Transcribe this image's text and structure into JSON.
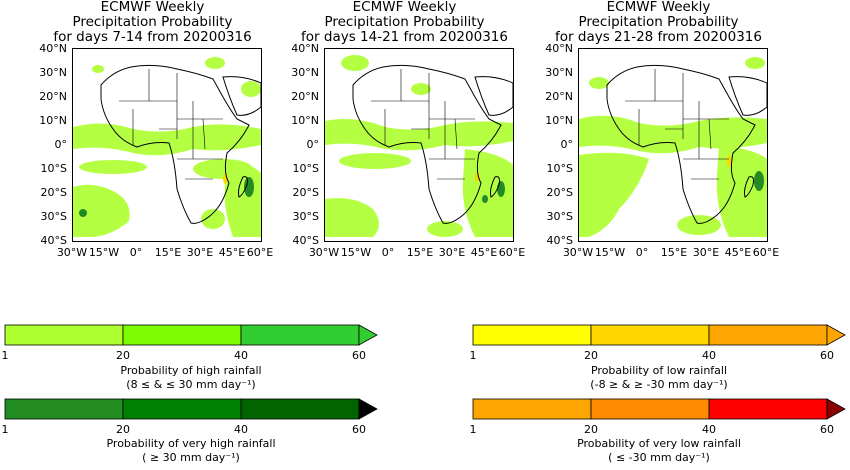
{
  "maps": [
    {
      "title": [
        "ECMWF Weekly",
        "Precipitation Probability",
        "for days 7-14 from 20200316"
      ]
    },
    {
      "title": [
        "ECMWF Weekly",
        "Precipitation Probability",
        "for days 14-21 from 20200316"
      ]
    },
    {
      "title": [
        "ECMWF Weekly",
        "Precipitation Probability",
        "for days 21-28 from 20200316"
      ]
    }
  ],
  "lat_ticks": [
    "40°N",
    "30°N",
    "20°N",
    "10°N",
    "0°",
    "10°S",
    "20°S",
    "30°S",
    "40°S"
  ],
  "lon_ticks": [
    "30°W",
    "15°W",
    "0°",
    "15°E",
    "30°E",
    "45°E",
    "60°E"
  ],
  "colorbars": [
    {
      "id": "high",
      "label1": "Probability of high rainfall",
      "label2": "(8  ≤  &  ≤  30 mm day⁻¹)",
      "colors": [
        "#adff2f",
        "#7cfc00",
        "#32cd32"
      ],
      "tip": "#32cd32",
      "ticks": [
        "1",
        "20",
        "40",
        "60"
      ]
    },
    {
      "id": "very-high",
      "label1": "Probability of very high rainfall",
      "label2": "( ≥  30 mm day⁻¹)",
      "colors": [
        "#228b22",
        "#008000",
        "#006400"
      ],
      "tip": "#000000",
      "ticks": [
        "1",
        "20",
        "40",
        "60"
      ]
    },
    {
      "id": "low",
      "label1": "Probability of low rainfall",
      "label2": "(-8  ≥  &  ≥  -30 mm day⁻¹)",
      "colors": [
        "#ffff00",
        "#ffd700",
        "#ffa500"
      ],
      "tip": "#ffa500",
      "ticks": [
        "1",
        "20",
        "40",
        "60"
      ]
    },
    {
      "id": "very-low",
      "label1": "Probability of very low rainfall",
      "label2": "( ≤  -30 mm day⁻¹)",
      "colors": [
        "#ffa500",
        "#ff8c00",
        "#ff0000"
      ],
      "tip": "#8b0000",
      "ticks": [
        "1",
        "20",
        "40",
        "60"
      ]
    }
  ]
}
